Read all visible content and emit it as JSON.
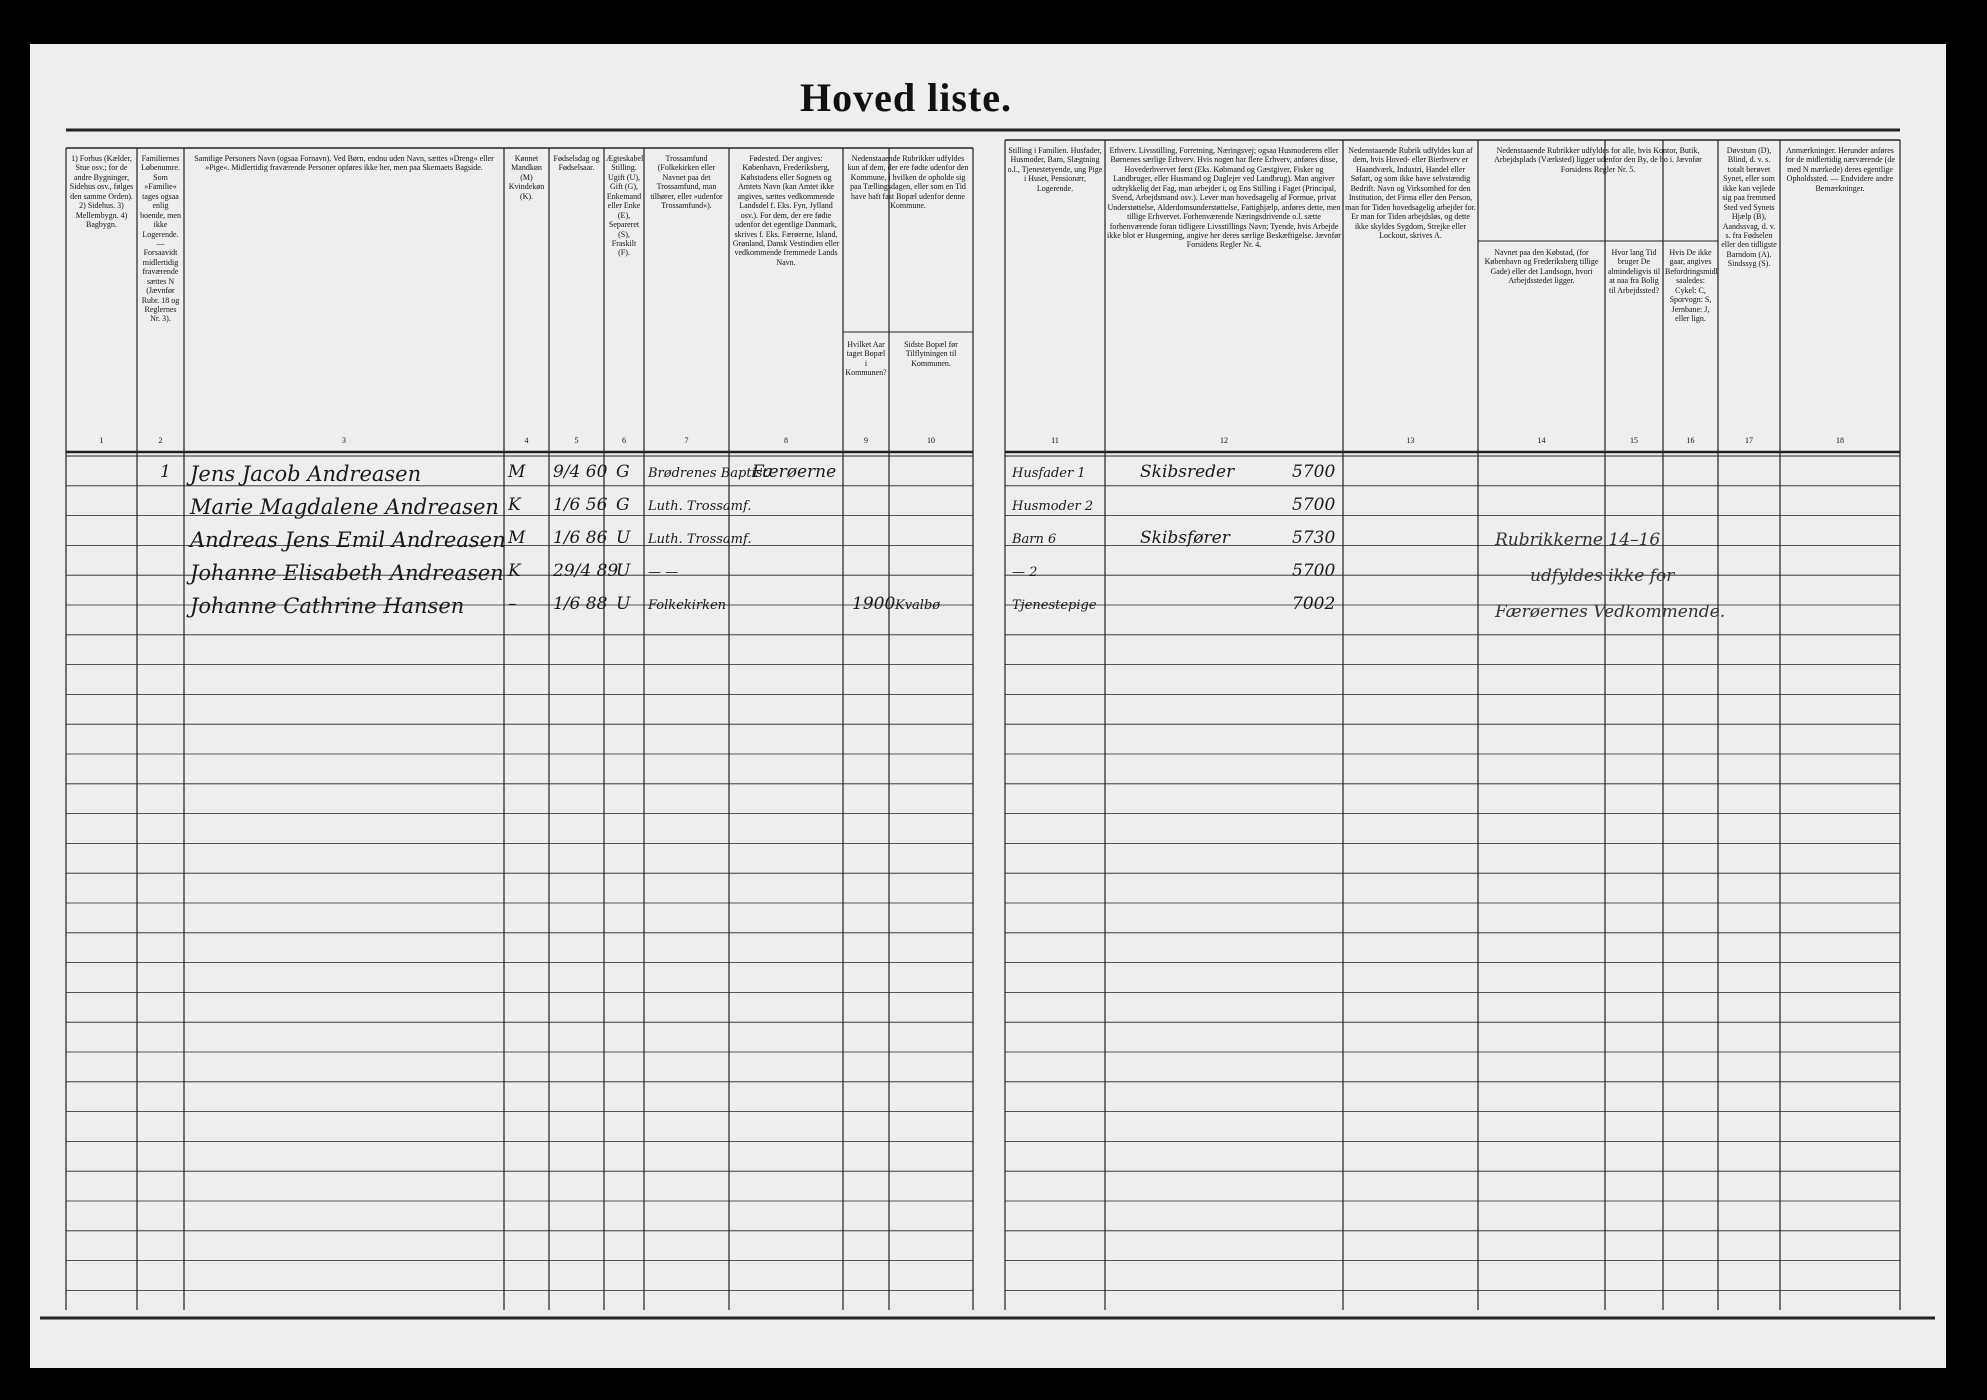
{
  "header": {
    "title": "Hoved liste."
  },
  "columns": [
    {
      "number": "1",
      "header": "1) Forhus (Kælder, Stue osv.; for de andre Bygninger, Sidehus osv., følges den samme Orden). 2) Sidehus. 3) Mellembygn. 4) Bagbygn."
    },
    {
      "number": "2",
      "header": "Familiernes Løbenumre. Som »Familie« tages ogsaa enlig boende, men ikke Logerende. — Forsaavidt midlertidig fraværende sættes N (Jævnfør Rubr. 18 og Reglernes Nr. 3)."
    },
    {
      "number": "3",
      "header": "Samtlige Personers Navn (ogsaa Fornavn). Ved Børn, endnu uden Navn, sættes »Dreng« eller »Pige«. Midlertidig fraværende Personer opføres ikke her, men paa Skemaets Bagside."
    },
    {
      "number": "4",
      "header": "Kønnet Mandkøn (M) Kvindekøn (K)."
    },
    {
      "number": "5",
      "header": "Fødselsdag og Fødselsaar."
    },
    {
      "number": "6",
      "header": "Ægteskabelig Stilling. Ugift (U), Gift (G), Enkemand eller Enke (E), Separeret (S), Fraskilt (F)."
    },
    {
      "number": "7",
      "header": "Trossamfund (Folkekirken eller Navnet paa det Trossamfund, man tilhører, eller »udenfor Trossamfund«)."
    },
    {
      "number": "8",
      "header": "Fødested. Der angives: København, Frederiksberg, Købstadens eller Sognets og Amtets Navn (kan Amtet ikke angives, sættes vedkommende Landsdel f. Eks. Fyn, Jylland osv.). For dem, der ere fødte udenfor det egentlige Danmark, skrives f. Eks. Færøerne, Island, Grønland, Dansk Vestindien eller vedkommende fremmede Lands Navn."
    },
    {
      "number": "9",
      "header": "Hvilket Aar taget Bopæl i Kommunen?"
    },
    {
      "number": "10",
      "header": "Sidste Bopæl før Tilflytningen til Kommunen."
    },
    {
      "number": "11",
      "header": "Stilling i Familien. Husfader, Husmoder, Barn, Slægtning o.l., Tjenestetyende, ung Pige i Huset, Pensionær, Logerende."
    },
    {
      "number": "12",
      "header": "Erhverv. Livsstilling, Forretning, Næringsvej; ogsaa Husmoderens eller Børnenes særlige Erhverv. Hvis nogen har flere Erhverv, anføres disse, Hovederhvervet først (Eks. Købmand og Gæstgiver, Fisker og Landbruger, eller Husmand og Daglejer ved Landbrug). Man angiver udtrykkelig det Fag, man arbejder i, og Ens Stilling i Faget (Principal, Svend, Arbejdsmand osv.). Lever man hovedsagelig af Formue, privat Understøttelse, Alderdomsunderstøttelse, Fattighjælp, anføres dette, men tillige Erhvervet. Forhenværende Næringsdrivende o.l. sætte forhenværende foran tidligere Livsstillings Navn; Tyende, hvis Arbejde ikke blot er Husgerning, angive her deres særlige Beskæftigelse. Jævnfør Forsidens Regler Nr. 4."
    },
    {
      "number": "13",
      "header": "Nedenstaaende Rubrik udfyldes kun af dem, hvis Hoved- eller Bierhverv er Haandværk, Industri, Handel eller Søfart, og som ikke have selvstændig Bedrift. Navn og Virksomhed for den Institution, det Firma eller den Person, man for Tiden hovedsagelig arbejder for. Er man for Tiden arbejdsløs, og dette ikke skyldes Sygdom, Strejke eller Lockout, skrives A."
    },
    {
      "number": "14",
      "header": "Navnet paa den Købstad, (for København og Frederiksberg tillige Gade) eller det Landsogn, hvori Arbejdsstedet ligger."
    },
    {
      "number": "15",
      "header": "Hvor lang Tid bruger De almindeligvis til at naa fra Bolig til Arbejdssted?"
    },
    {
      "number": "16",
      "header": "Hvis De ikke gaar, angives Befordringsmidlet saaledes: Cykel: C, Sporvogn: S, Jernbane: J, eller lign."
    },
    {
      "number": "17",
      "header": "Døvstum (D), Blind, d. v. s. totalt berøvet Synet, eller som ikke kan vejlede sig paa fremmed Sted ved Synets Hjælp (B), Aandssvag, d. v. s. fra Fødselen eller den tidligste Barndom (A). Sindssyg (S)."
    },
    {
      "number": "18",
      "header": "Anmærkninger. Herunder anføres for de midlertidig nærværende (de med N mærkede) deres egentlige Opholdssted. — Endvidere andre Bemærkninger."
    }
  ],
  "shared_headers": [
    "Nedenstaaende Rubrikker udfyldes kun af dem, der ere fødte udenfor den Kommune, i hvilken de opholde sig paa Tællingsdagen, eller som en Tid have haft fast Bopæl udenfor denne Kommune.",
    "Nedenstaaende Rubrikker udfyldes for alle, hvis Kontor, Butik, Arbejdsplads (Værksted) ligger udenfor den By, de bo i. Jævnfør Forsidens Regler Nr. 5."
  ],
  "rows": [
    {
      "family": "1",
      "name": "Jens Jacob Andreasen",
      "sex": "M",
      "birth": "9/4 60",
      "marital": "G",
      "faith": "Brødrenes Baptist",
      "birthplace": "Færøerne",
      "position": "Husfader 1",
      "occupation": "Skibsreder",
      "code": "5700"
    },
    {
      "name": "Marie Magdalene Andreasen",
      "sex": "K",
      "birth": "1/6 56",
      "marital": "G",
      "faith": "Luth. Trossamf.",
      "position": "Husmoder 2",
      "code": "5700"
    },
    {
      "name": "Andreas Jens Emil Andreasen",
      "sex": "M",
      "birth": "1/6 86",
      "marital": "U",
      "faith": "Luth. Trossamf.",
      "position": "Barn 6",
      "occupation": "Skibsfører",
      "code": "5730"
    },
    {
      "name": "Johanne Elisabeth Andreasen",
      "sex": "K",
      "birth": "29/4 89",
      "marital": "U",
      "faith": "— —",
      "position": "— 2",
      "code": "5700"
    },
    {
      "name": "Johanne Cathrine Hansen",
      "sex": "–",
      "birth": "1/6 88",
      "marital": "U",
      "faith": "Folkekirken",
      "year_moved": "1900",
      "last_residence": "Kvalbø",
      "position": "Tjenestepige",
      "code": "7002"
    }
  ],
  "annotation": [
    "Rubrikkerne 14–16",
    "udfyldes ikke for",
    "Færøernes Vedkommende."
  ]
}
